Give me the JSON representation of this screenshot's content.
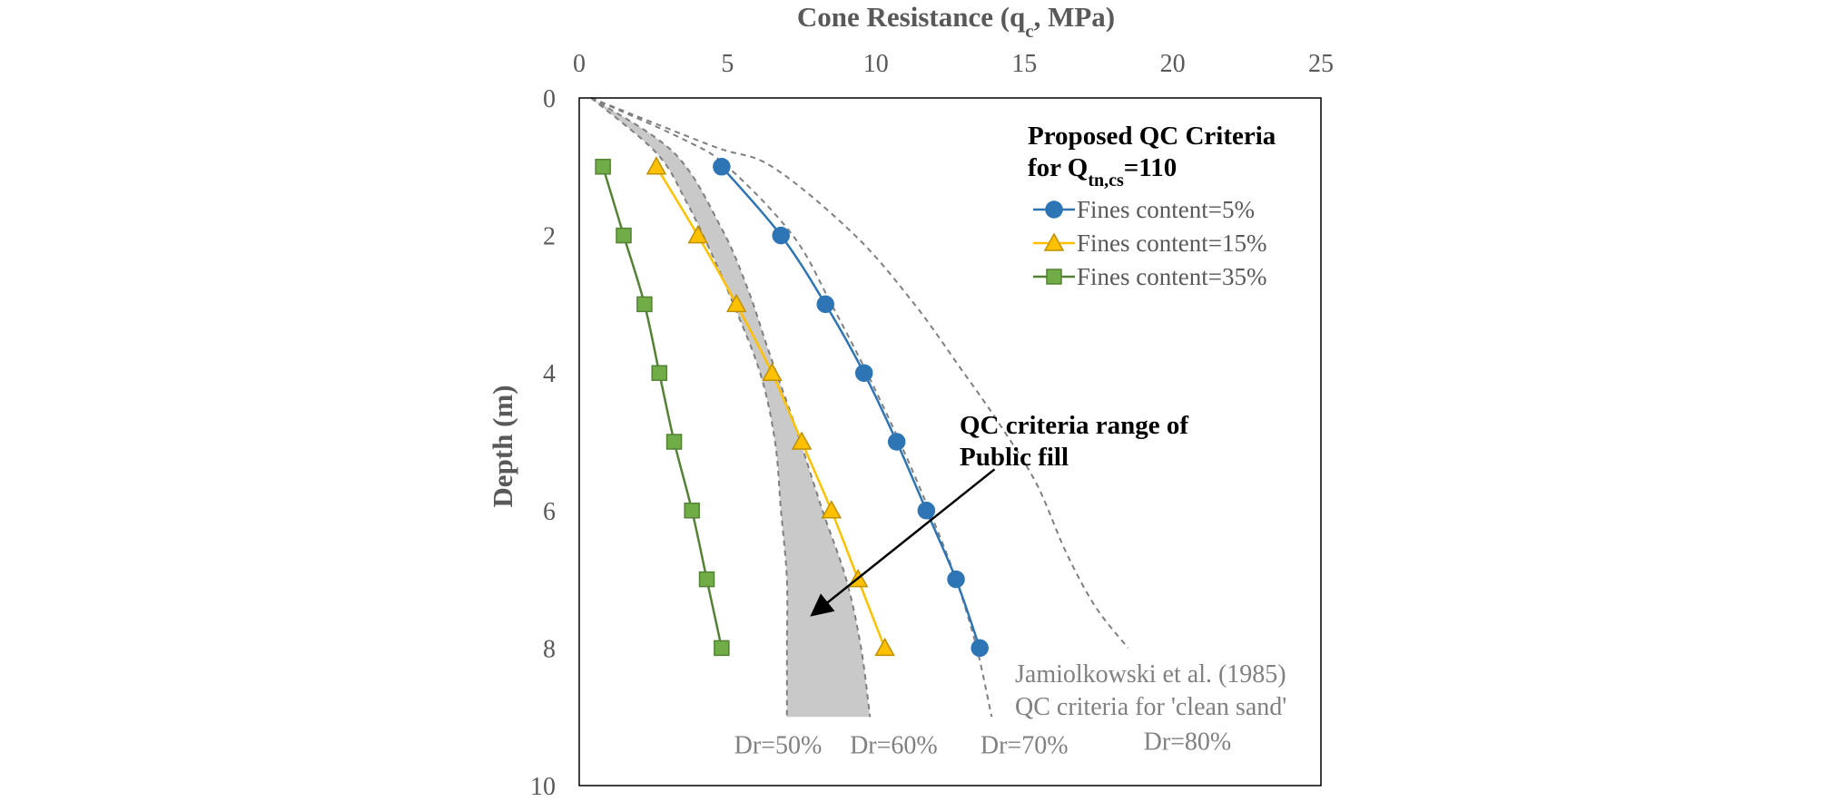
{
  "chart_data": {
    "type": "line",
    "title": "",
    "xlabel": "Cone Resistance (q",
    "xlabel_sub": "c",
    "xlabel_suffix": ", MPa)",
    "ylabel": "Depth (m)",
    "xlim": [
      0,
      25
    ],
    "ylim": [
      0,
      10
    ],
    "x_axis_position": "top",
    "y_inverted": true,
    "grid": false,
    "x_ticks": [
      0,
      5,
      10,
      15,
      20,
      25
    ],
    "y_ticks": [
      0,
      2,
      4,
      6,
      8,
      10
    ],
    "legend": {
      "placement": "top-right",
      "title_line1": "Proposed QC Criteria",
      "title_line2_prefix": "for Q",
      "title_line2_sub": "tn,cs",
      "title_line2_suffix": "=110"
    },
    "series": [
      {
        "name": "Fines content=5%",
        "marker": "circle",
        "color": "#2E75B6",
        "fill": "#2E75B6",
        "points": [
          [
            4.8,
            1
          ],
          [
            6.8,
            2
          ],
          [
            8.3,
            3
          ],
          [
            9.6,
            4
          ],
          [
            10.7,
            5
          ],
          [
            11.7,
            6
          ],
          [
            12.7,
            7
          ],
          [
            13.5,
            8
          ]
        ]
      },
      {
        "name": "Fines content=15%",
        "marker": "triangle",
        "color": "#FFC000",
        "fill": "#FFC000",
        "points": [
          [
            2.6,
            1
          ],
          [
            4.0,
            2
          ],
          [
            5.3,
            3
          ],
          [
            6.5,
            4
          ],
          [
            7.5,
            5
          ],
          [
            8.5,
            6
          ],
          [
            9.4,
            7
          ],
          [
            10.3,
            8
          ]
        ]
      },
      {
        "name": "Fines content=35%",
        "marker": "square",
        "color": "#548235",
        "fill": "#70AD47",
        "points": [
          [
            0.8,
            1
          ],
          [
            1.5,
            2
          ],
          [
            2.2,
            3
          ],
          [
            2.7,
            4
          ],
          [
            3.2,
            5
          ],
          [
            3.8,
            6
          ],
          [
            4.3,
            7
          ],
          [
            4.8,
            8
          ]
        ]
      }
    ],
    "reference_curves": [
      {
        "label": "Dr=50%",
        "points": [
          [
            0.4,
            0
          ],
          [
            2.6,
            0.8
          ],
          [
            3.6,
            1.5
          ],
          [
            4.5,
            2.3
          ],
          [
            5.2,
            3.0
          ],
          [
            6.1,
            4.0
          ],
          [
            6.6,
            5.0
          ],
          [
            6.8,
            6.0
          ],
          [
            7.0,
            7.0
          ],
          [
            7.0,
            8.0
          ],
          [
            7.0,
            9.0
          ]
        ]
      },
      {
        "label": "Dr=60%",
        "points": [
          [
            0.4,
            0
          ],
          [
            3.2,
            0.8
          ],
          [
            4.8,
            1.9
          ],
          [
            5.7,
            2.8
          ],
          [
            6.4,
            3.7
          ],
          [
            7.3,
            4.8
          ],
          [
            8.2,
            6.0
          ],
          [
            9.0,
            7.0
          ],
          [
            9.5,
            8.0
          ],
          [
            9.8,
            9.0
          ]
        ]
      },
      {
        "label": "Dr=70%",
        "points": [
          [
            0.4,
            0
          ],
          [
            3.5,
            0.6
          ],
          [
            5.0,
            1.0
          ],
          [
            7.2,
            2.0
          ],
          [
            8.5,
            3.0
          ],
          [
            9.7,
            4.0
          ],
          [
            10.8,
            5.0
          ],
          [
            11.8,
            6.0
          ],
          [
            12.7,
            7.0
          ],
          [
            13.4,
            8.0
          ],
          [
            13.9,
            9.0
          ]
        ]
      },
      {
        "label": "Dr=80%",
        "points": [
          [
            0.4,
            0
          ],
          [
            4.5,
            0.7
          ],
          [
            6.5,
            1.0
          ],
          [
            9.3,
            2.0
          ],
          [
            11.3,
            3.0
          ],
          [
            12.8,
            3.9
          ],
          [
            14.1,
            4.7
          ],
          [
            15.4,
            5.6
          ],
          [
            16.4,
            6.6
          ],
          [
            17.4,
            7.4
          ],
          [
            18.5,
            8.0
          ]
        ]
      }
    ],
    "shaded_band": {
      "between": [
        "Dr=50%",
        "Dr=60%"
      ],
      "color": "#C9C9C9"
    },
    "annotations": {
      "band_label_line1": "QC criteria range of",
      "band_label_line2": "Public fill",
      "arrow_from": [
        14.0,
        5.4
      ],
      "arrow_to": [
        7.9,
        7.5
      ],
      "reference_line1": "Jamiolkowski et al. (1985)",
      "reference_line2": "QC criteria for 'clean sand'",
      "dr_label_positions": [
        [
          6.7,
          9.4
        ],
        [
          10.6,
          9.4
        ],
        [
          15.0,
          9.4
        ],
        [
          20.5,
          9.35
        ]
      ]
    }
  }
}
